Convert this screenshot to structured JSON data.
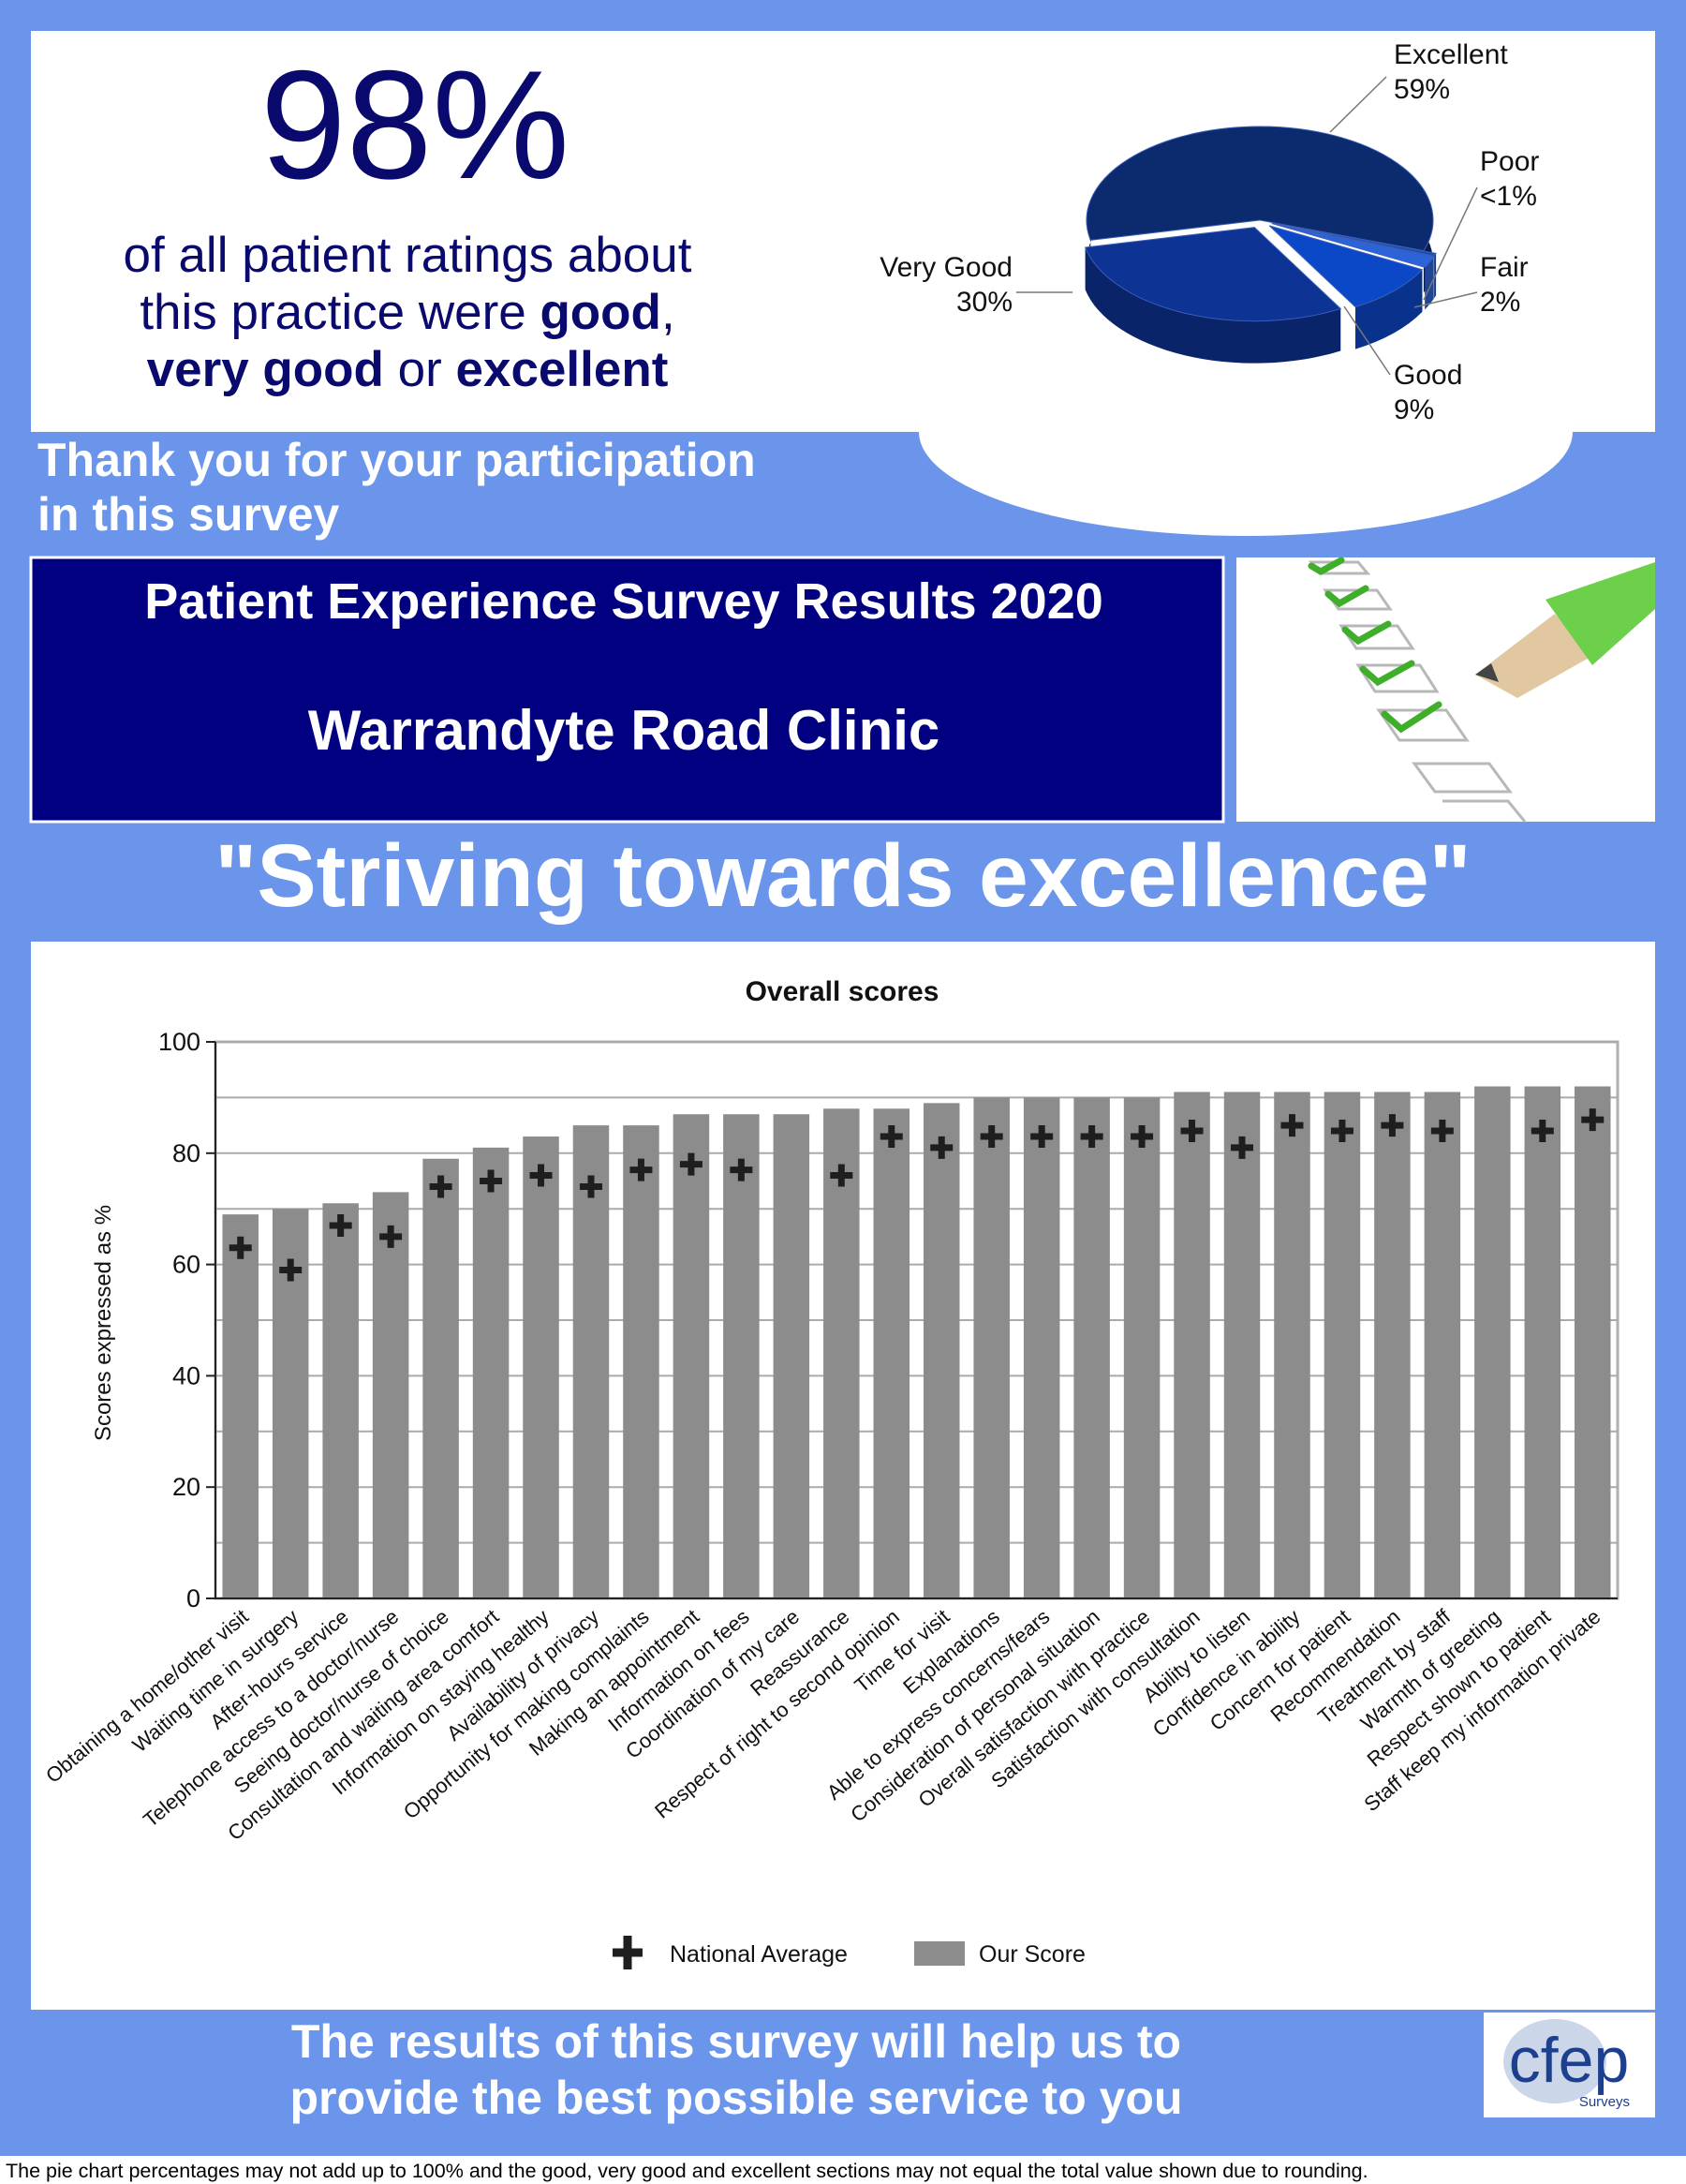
{
  "headline": {
    "figure": "98%",
    "lines": [
      [
        {
          "text": "of all patient ratings about"
        }
      ],
      [
        {
          "text": "this practice were "
        },
        {
          "text": "good",
          "bold": true
        },
        {
          "text": ","
        }
      ],
      [
        {
          "text": "very good",
          "bold": true
        },
        {
          "text": " or "
        },
        {
          "text": "excellent",
          "bold": true
        }
      ]
    ]
  },
  "thanks": [
    "Thank you for your participation",
    "in this survey"
  ],
  "banner": {
    "title": "Patient Experience Survey Results 2020",
    "practice": "Warrandyte Road Clinic"
  },
  "motto": "\"Striving towards excellence\"",
  "chart_data": [
    {
      "type": "pie",
      "categories": [
        "Excellent",
        "Very Good",
        "Good",
        "Fair",
        "Poor"
      ],
      "values": [
        59,
        30,
        9,
        2,
        0.5
      ],
      "value_labels": [
        "59%",
        "30%",
        "9%",
        "2%",
        "<1%"
      ],
      "colors": [
        "#0c2a6e",
        "#0d3394",
        "#0b48c8",
        "#2d63d8",
        "#1a4fb0"
      ]
    },
    {
      "type": "bar",
      "title": "Overall scores",
      "y_label": "Scores expressed as %",
      "categories": [
        "Obtaining a home/other visit",
        "Waiting time in surgery",
        "After-hours service",
        "Telephone access to a doctor/nurse",
        "Seeing doctor/nurse of choice",
        "Consultation and waiting area comfort",
        "Information on staying healthy",
        "Availability of privacy",
        "Opportunity for making complaints",
        "Making an appointment",
        "Information on fees",
        "Coordination of my care",
        "Reassurance",
        "Respect of right to second opinion",
        "Time for visit",
        "Explanations",
        "Able to express concerns/fears",
        "Consideration of personal situation",
        "Overall satisfaction with practice",
        "Satisfaction with consultation",
        "Ability to listen",
        "Confidence in ability",
        "Concern for patient",
        "Recommendation",
        "Treatment by staff",
        "Warmth of greeting",
        "Respect shown to patient",
        "Staff keep my information private"
      ],
      "series": [
        {
          "name": "National Average",
          "color": "#1e1e1e",
          "marker": "cross",
          "values": [
            63,
            59,
            67,
            65,
            74,
            75,
            76,
            74,
            77,
            78,
            77,
            null,
            76,
            83,
            81,
            83,
            83,
            83,
            83,
            84,
            81,
            85,
            84,
            85,
            84,
            null,
            84,
            86
          ]
        },
        {
          "name": "Our Score",
          "color": "#8c8c8c",
          "marker": "bar",
          "values": [
            69,
            70,
            71,
            73,
            79,
            81,
            83,
            85,
            85,
            87,
            87,
            87,
            88,
            88,
            89,
            90,
            90,
            90,
            90,
            91,
            91,
            91,
            91,
            91,
            91,
            92,
            92,
            92
          ]
        }
      ],
      "ylim": [
        0,
        100
      ],
      "yticks": [
        0,
        20,
        40,
        60,
        80,
        100
      ],
      "minor_yticks": [
        10,
        30,
        50,
        70,
        90
      ],
      "grid": true,
      "legend": "bottom-center"
    }
  ],
  "closing": [
    "The results of this survey will help us to",
    "provide the best possible service to you"
  ],
  "logo": {
    "name": "cfep",
    "tagline": "Surveys"
  },
  "footnote": "The pie chart percentages may not add up to 100% and the good, very good and excellent sections may not equal the total value shown due to rounding."
}
